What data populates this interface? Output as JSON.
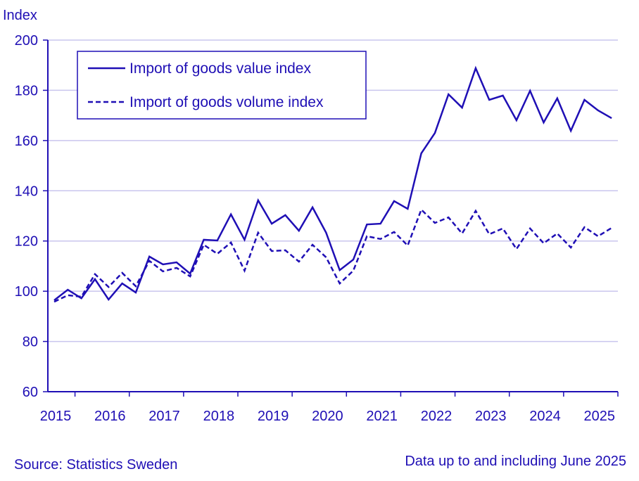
{
  "chart_data": {
    "type": "line",
    "ylabel": "Index",
    "ylim": [
      60,
      200
    ],
    "yticks": [
      60,
      80,
      100,
      120,
      140,
      160,
      180,
      200
    ],
    "xtick_labels": [
      "2015",
      "2016",
      "2017",
      "2018",
      "2019",
      "2020",
      "2021",
      "2022",
      "2023",
      "2024",
      "2025"
    ],
    "x": [
      "2015Q1",
      "2015Q2",
      "2015Q3",
      "2015Q4",
      "2016Q1",
      "2016Q2",
      "2016Q3",
      "2016Q4",
      "2017Q1",
      "2017Q2",
      "2017Q3",
      "2017Q4",
      "2018Q1",
      "2018Q2",
      "2018Q3",
      "2018Q4",
      "2019Q1",
      "2019Q2",
      "2019Q3",
      "2019Q4",
      "2020Q1",
      "2020Q2",
      "2020Q3",
      "2020Q4",
      "2021Q1",
      "2021Q2",
      "2021Q3",
      "2021Q4",
      "2022Q1",
      "2022Q2",
      "2022Q3",
      "2022Q4",
      "2023Q1",
      "2023Q2",
      "2023Q3",
      "2023Q4",
      "2024Q1",
      "2024Q2",
      "2024Q3",
      "2024Q4",
      "2025Q1",
      "2025Q2"
    ],
    "grid": true,
    "legend_position": "top-left",
    "series": [
      {
        "name": "Import of goods value index",
        "style": "solid",
        "values": [
          96.4,
          100.6,
          97.2,
          104.8,
          96.7,
          103.1,
          99.5,
          113.8,
          110.7,
          111.5,
          107.0,
          120.5,
          120.2,
          130.6,
          120.5,
          136.2,
          126.9,
          130.3,
          124.1,
          133.4,
          123.3,
          108.4,
          112.6,
          126.6,
          126.9,
          135.9,
          132.8,
          154.9,
          163.0,
          178.4,
          173.1,
          188.8,
          176.2,
          177.9,
          168.1,
          179.8,
          167.2,
          176.8,
          163.9,
          176.2,
          172.0,
          168.9
        ]
      },
      {
        "name": "Import of goods volume index",
        "style": "dashed",
        "values": [
          95.8,
          98.4,
          97.8,
          106.8,
          101.7,
          107.3,
          102.0,
          112.1,
          107.9,
          109.3,
          105.9,
          118.5,
          114.9,
          119.4,
          108.2,
          123.3,
          116.0,
          116.3,
          111.8,
          118.5,
          113.5,
          103.1,
          108.2,
          121.9,
          120.8,
          123.6,
          118.2,
          132.5,
          127.2,
          129.4,
          123.0,
          132.0,
          122.7,
          125.0,
          116.8,
          125.0,
          119.1,
          123.0,
          117.4,
          125.5,
          121.9,
          125.2
        ]
      }
    ],
    "colors": {
      "line": "#1f0fb5",
      "grid": "#c9c5ee",
      "text": "#1f0fb5"
    }
  },
  "footer": {
    "source": "Source: Statistics Sweden",
    "note": "Data up to and including June 2025"
  }
}
